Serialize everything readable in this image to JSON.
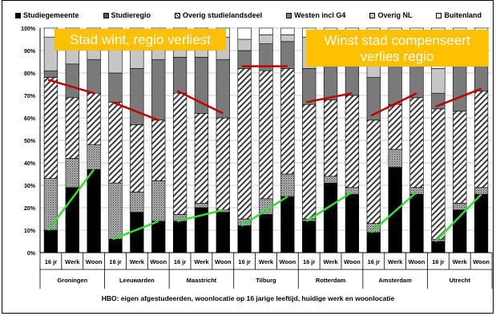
{
  "legend": {
    "items": [
      {
        "label": "Studiegemeente",
        "pattern": "solid-black"
      },
      {
        "label": "Studieregio",
        "pattern": "dots-dark"
      },
      {
        "label": "Overig studielandsdeel",
        "pattern": "diag-hatch"
      },
      {
        "label": "Westen incl G4",
        "pattern": "dark-grey"
      },
      {
        "label": "Overig NL",
        "pattern": "light-grey"
      },
      {
        "label": "Buitenland",
        "pattern": "white"
      }
    ]
  },
  "callouts": {
    "left": "Stad wint, regio verliest",
    "right": "Winst stad compenseert verlies regio"
  },
  "footer": {
    "caption": "HBO: eigen afgestudeerden, woonlocatie op 16 jarige leeftijd, huidige werk en woonlocatie"
  },
  "colors": {
    "studiegemeente": "#000000",
    "studieregio": "#8c8c8c",
    "overig_studielandsdeel": "#e8e8e8",
    "westen": "#7a7a7a",
    "overig_nl": "#c6c6c6",
    "buitenland": "#ffffff",
    "callout_bg": "#FFC000",
    "trend_green": "#33dd33",
    "trend_red": "#c00000"
  },
  "chart_data": {
    "type": "bar",
    "stacked": true,
    "percent_axis": true,
    "ylim": [
      0,
      100
    ],
    "yticks": [
      "0%",
      "10%",
      "20%",
      "30%",
      "40%",
      "50%",
      "60%",
      "70%",
      "80%",
      "90%",
      "100%"
    ],
    "grid": true,
    "legend_position": "top",
    "groups": [
      "Groningen",
      "Leeuwarden",
      "Maastricht",
      "Tilburg",
      "Rotterdam",
      "Amsterdam",
      "Utrecht"
    ],
    "categories": [
      "16 jr",
      "Werk",
      "Woon"
    ],
    "series": [
      {
        "name": "Studiegemeente",
        "values": [
          [
            10,
            29,
            37
          ],
          [
            6,
            18,
            14
          ],
          [
            14,
            20,
            18
          ],
          [
            12,
            17,
            25
          ],
          [
            14,
            31,
            26
          ],
          [
            9,
            38,
            26
          ],
          [
            5,
            19,
            26
          ]
        ]
      },
      {
        "name": "Studieregio",
        "values": [
          [
            23,
            13,
            11
          ],
          [
            25,
            9,
            18
          ],
          [
            3,
            2,
            1
          ],
          [
            3,
            7,
            10
          ],
          [
            1,
            3,
            3
          ],
          [
            4,
            8,
            3
          ],
          [
            1,
            3,
            3
          ]
        ]
      },
      {
        "name": "Overig studielandsdeel",
        "values": [
          [
            45,
            27,
            23
          ],
          [
            36,
            30,
            27
          ],
          [
            54,
            40,
            41
          ],
          [
            67,
            57,
            47
          ],
          [
            51,
            34,
            41
          ],
          [
            46,
            20,
            40
          ],
          [
            58,
            41,
            43
          ]
        ]
      },
      {
        "name": "Westen incl G4",
        "values": [
          [
            3,
            15,
            15
          ],
          [
            13,
            25,
            27
          ],
          [
            16,
            25,
            26
          ],
          [
            8,
            12,
            12
          ],
          [
            16,
            25,
            24
          ],
          [
            19,
            25,
            23
          ],
          [
            7,
            25,
            20
          ]
        ]
      },
      {
        "name": "Overig NL",
        "values": [
          [
            15,
            10,
            10
          ],
          [
            12,
            12,
            10
          ],
          [
            9,
            9,
            10
          ],
          [
            5,
            4,
            3
          ],
          [
            14,
            5,
            4
          ],
          [
            19,
            2,
            6
          ],
          [
            11,
            9,
            5
          ]
        ]
      },
      {
        "name": "Buitenland",
        "values": [
          [
            4,
            6,
            4
          ],
          [
            8,
            6,
            4
          ],
          [
            4,
            4,
            4
          ],
          [
            5,
            3,
            3
          ],
          [
            4,
            2,
            2
          ],
          [
            3,
            7,
            2
          ],
          [
            18,
            3,
            3
          ]
        ]
      }
    ],
    "annotations": {
      "green_lines": [
        [
          10,
          37
        ],
        [
          6,
          14
        ],
        [
          14,
          19
        ],
        [
          12,
          25
        ],
        [
          14,
          27
        ],
        [
          9,
          27
        ],
        [
          5,
          26
        ]
      ],
      "red_lines": [
        [
          77,
          71
        ],
        [
          67,
          59
        ],
        [
          72,
          62
        ],
        [
          83,
          83
        ],
        [
          67,
          71
        ],
        [
          61,
          71
        ],
        [
          65,
          73
        ]
      ]
    }
  }
}
